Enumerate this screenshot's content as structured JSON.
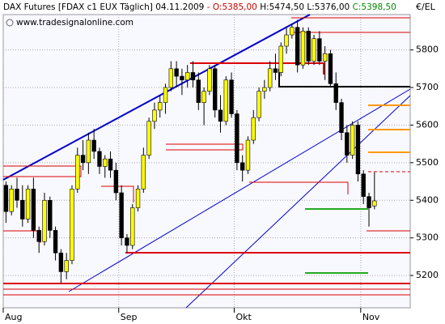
{
  "header": {
    "title": "DAX Futures [FDAX c1 EUX  Täglich] 04.11.2009",
    "open": "- O:5385,00",
    "high_low": "H:5474,50 L:5376,00",
    "close": "C:5398,50"
  },
  "watermark": "www.tradesignalonline.com",
  "chart_data": {
    "type": "candlestick",
    "unit": "€/EL",
    "categories": [
      "Aug",
      null,
      null,
      null,
      null,
      null,
      null,
      null,
      null,
      null,
      null,
      null,
      null,
      null,
      null,
      null,
      null,
      null,
      null,
      null,
      null,
      "Sep",
      null,
      null,
      null,
      null,
      null,
      null,
      null,
      null,
      null,
      null,
      null,
      null,
      null,
      null,
      null,
      null,
      null,
      null,
      null,
      null,
      "Okt",
      null,
      null,
      null,
      null,
      null,
      null,
      null,
      null,
      null,
      null,
      null,
      null,
      null,
      null,
      null,
      null,
      null,
      null,
      null,
      null,
      null,
      null,
      "Nov",
      null,
      null
    ],
    "open": [
      5440,
      5370,
      5430,
      5400,
      5350,
      5430,
      5320,
      5290,
      5400,
      5320,
      5260,
      5210,
      5240,
      5430,
      5520,
      5500,
      5560,
      5530,
      5490,
      5510,
      5480,
      5420,
      5300,
      5280,
      5380,
      5430,
      5520,
      5610,
      5640,
      5660,
      5700,
      5750,
      5730,
      5720,
      5740,
      5720,
      5660,
      5690,
      5750,
      5640,
      5610,
      5720,
      5630,
      5500,
      5480,
      5560,
      5620,
      5690,
      5700,
      5750,
      5740,
      5810,
      5840,
      5860,
      5760,
      5850,
      5770,
      5830,
      5770,
      5790,
      5710,
      5660,
      5580,
      5520,
      5600,
      5470,
      5410,
      5385
    ],
    "high": [
      5450,
      5440,
      5460,
      5440,
      5440,
      5460,
      5330,
      5420,
      5410,
      5330,
      5270,
      5260,
      5440,
      5540,
      5560,
      5580,
      5590,
      5540,
      5520,
      5530,
      5500,
      5440,
      5310,
      5390,
      5440,
      5540,
      5620,
      5660,
      5680,
      5710,
      5770,
      5770,
      5750,
      5760,
      5770,
      5740,
      5700,
      5760,
      5760,
      5680,
      5730,
      5740,
      5640,
      5520,
      5570,
      5640,
      5700,
      5720,
      5770,
      5790,
      5820,
      5860,
      5870,
      5880,
      5860,
      5860,
      5840,
      5850,
      5810,
      5800,
      5740,
      5670,
      5600,
      5610,
      5610,
      5480,
      5420,
      5474.5
    ],
    "low": [
      5340,
      5360,
      5380,
      5330,
      5340,
      5300,
      5260,
      5280,
      5300,
      5240,
      5180,
      5190,
      5230,
      5420,
      5480,
      5470,
      5510,
      5470,
      5460,
      5460,
      5400,
      5280,
      5260,
      5270,
      5370,
      5420,
      5510,
      5590,
      5620,
      5630,
      5690,
      5700,
      5680,
      5700,
      5700,
      5640,
      5600,
      5680,
      5620,
      5580,
      5600,
      5620,
      5480,
      5450,
      5470,
      5550,
      5610,
      5670,
      5690,
      5720,
      5730,
      5790,
      5830,
      5740,
      5750,
      5760,
      5760,
      5760,
      5720,
      5700,
      5640,
      5560,
      5500,
      5510,
      5450,
      5390,
      5330,
      5376
    ],
    "close": [
      5370,
      5430,
      5400,
      5350,
      5430,
      5320,
      5290,
      5400,
      5320,
      5260,
      5210,
      5240,
      5430,
      5520,
      5500,
      5560,
      5530,
      5490,
      5510,
      5480,
      5420,
      5300,
      5280,
      5380,
      5430,
      5520,
      5610,
      5640,
      5660,
      5700,
      5750,
      5730,
      5720,
      5740,
      5720,
      5660,
      5690,
      5750,
      5640,
      5610,
      5720,
      5630,
      5500,
      5480,
      5560,
      5620,
      5690,
      5700,
      5750,
      5740,
      5810,
      5840,
      5860,
      5760,
      5850,
      5770,
      5830,
      5770,
      5790,
      5710,
      5660,
      5580,
      5520,
      5600,
      5470,
      5410,
      5380,
      5398.5
    ],
    "up_color": "#ffff00",
    "down_color": "#000000",
    "ylim": [
      5114,
      5894
    ],
    "yticks": [
      5200,
      5300,
      5400,
      5500,
      5600,
      5700,
      5800
    ],
    "grid": true
  }
}
